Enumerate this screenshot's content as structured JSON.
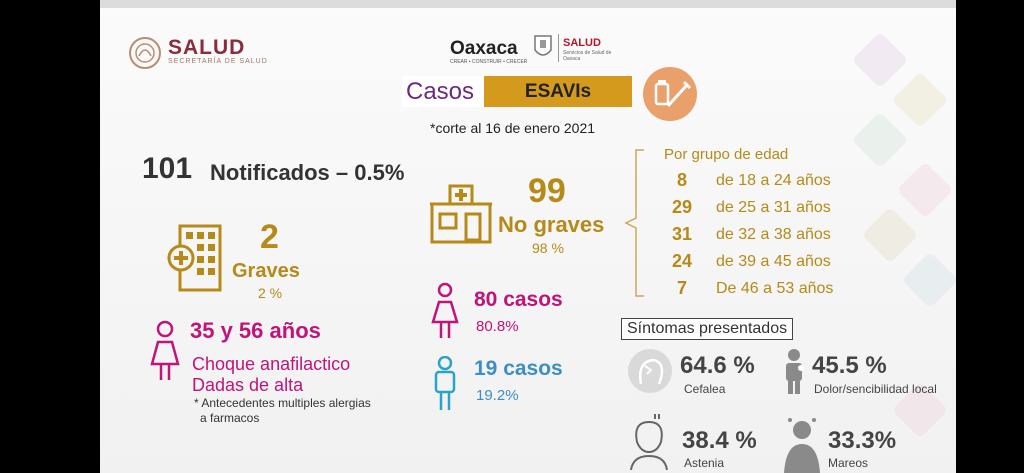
{
  "header": {
    "salud_logo": "SALUD",
    "salud_sub": "SECRETARÍA DE SALUD",
    "oaxaca_logo": "Oaxaca",
    "oaxaca_tagline": "CREAR • CONSTRUIR • CRECER",
    "oaxaca_salud": "SALUD",
    "oaxaca_salud_sub": "Servicios de Salud de Oaxaca"
  },
  "title": {
    "part1": "Casos",
    "part2": "ESAVIs",
    "cutoff": "*corte al 16 de enero 2021"
  },
  "summary": {
    "total": "101",
    "label": "Notificados – 0.5%"
  },
  "severe": {
    "count": "2",
    "label": "Graves",
    "percent": "2 %",
    "ages": "35 y 56 años",
    "diagnosis": "Choque anafilactico",
    "discharge": "Dadas de alta",
    "note_line1": "* Antecedentes multiples alergias",
    "note_line2": "a farmacos"
  },
  "non_severe": {
    "count": "99",
    "label": "No graves",
    "percent": "98 %"
  },
  "age_groups": {
    "title": "Por grupo de edad",
    "items": [
      {
        "count": "8",
        "range": "de 18 a 24 años"
      },
      {
        "count": "29",
        "range": "de 25 a 31 años"
      },
      {
        "count": "31",
        "range": "de 32 a 38 años"
      },
      {
        "count": "24",
        "range": "de 39 a 45 años"
      },
      {
        "count": "7",
        "range": "De 46 a 53 años"
      }
    ]
  },
  "sex": {
    "women": {
      "cases": "80 casos",
      "percent": "80.8%"
    },
    "men": {
      "cases": "19 casos",
      "percent": "19.2%"
    }
  },
  "symptoms": {
    "title": "Síntomas presentados",
    "items": [
      {
        "value": "64.6 %",
        "label": "Cefalea",
        "icon": "headache-icon"
      },
      {
        "value": "45.5 %",
        "label": "Dolor/sencibilidad local",
        "icon": "local-pain-icon"
      },
      {
        "value": "38.4 %",
        "label": "Astenia",
        "icon": "fatigue-icon"
      },
      {
        "value": "33.3%",
        "label": "Mareos",
        "icon": "dizziness-icon"
      }
    ]
  },
  "colors": {
    "gold": "#b58a18",
    "pink": "#c0147a",
    "blue": "#3c8ec6",
    "purple": "#6b2a82",
    "title_highlight": "#d49a1e"
  }
}
